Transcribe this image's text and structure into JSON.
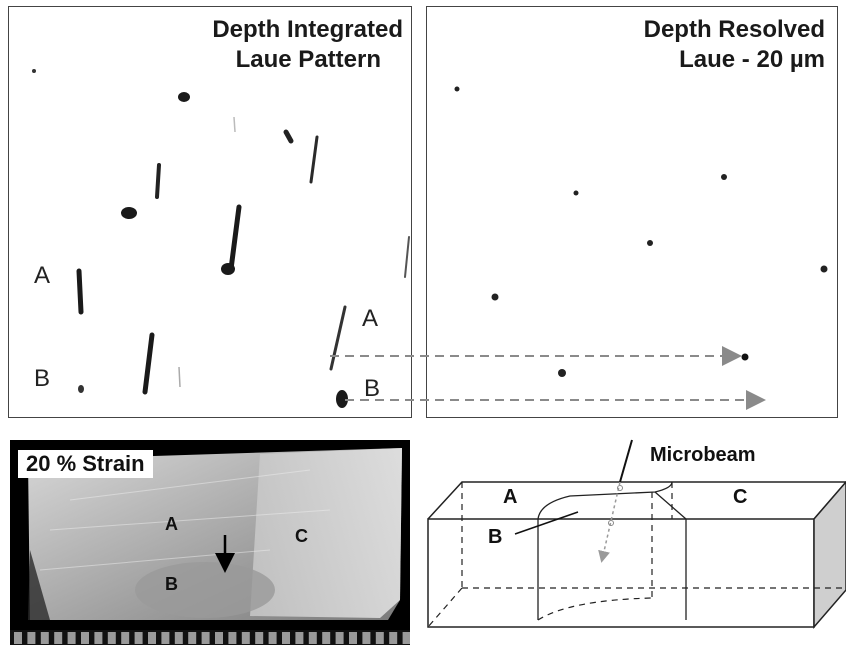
{
  "left_panel": {
    "title_line1": "Depth Integrated",
    "title_line2": "Laue Pattern",
    "label_a_left": "A",
    "label_b_left": "B",
    "label_a_right": "A",
    "label_b_right": "B"
  },
  "right_panel": {
    "title_line1": "Depth Resolved",
    "title_line2": "Laue -  20 µm"
  },
  "photo": {
    "strain_label": "20 % Strain",
    "label_a": "A",
    "label_b": "B",
    "label_c": "C"
  },
  "schematic": {
    "microbeam_label": "Microbeam",
    "label_a": "A",
    "label_b": "B",
    "label_c": "C"
  },
  "colors": {
    "arrow_gray": "#8a8a8a",
    "spot_dark": "#1a1a1a",
    "photo_bg": "#000000",
    "panel_border": "#444444"
  }
}
